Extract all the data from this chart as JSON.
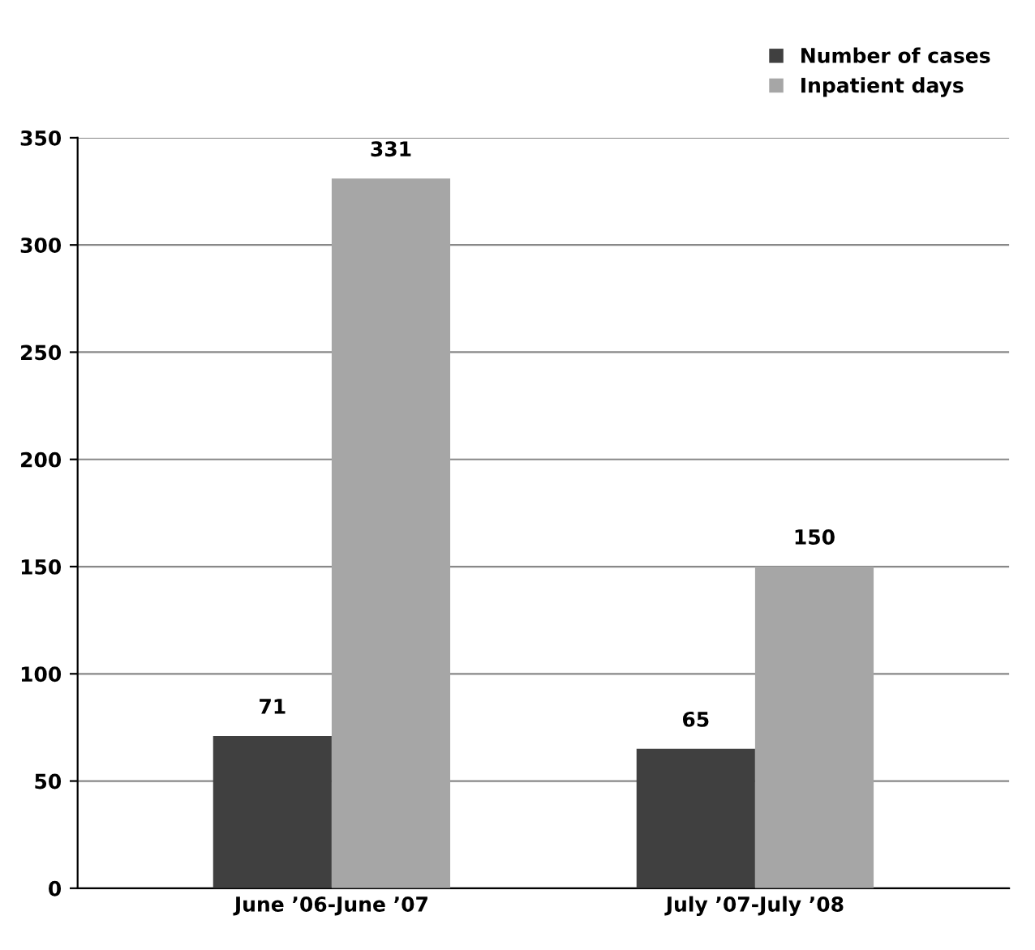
{
  "chart_data": {
    "type": "bar",
    "categories": [
      "June ’06-June ’07",
      "July ’07-July ’08"
    ],
    "series": [
      {
        "name": "Number of cases",
        "color": "#404040",
        "values": [
          71,
          65
        ]
      },
      {
        "name": "Inpatient days",
        "color": "#a6a6a6",
        "values": [
          331,
          150
        ]
      }
    ],
    "ylim": [
      0,
      350
    ],
    "yticks": [
      0,
      50,
      100,
      150,
      200,
      250,
      300,
      350
    ],
    "grid": "y",
    "legend": "top right",
    "data_labels": true
  }
}
